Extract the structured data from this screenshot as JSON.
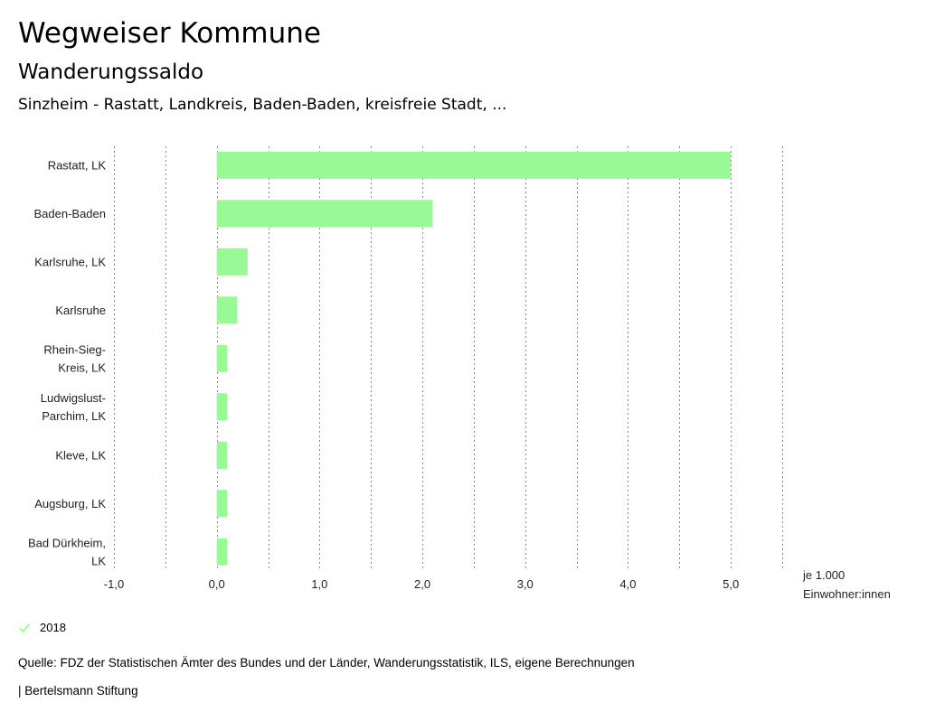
{
  "header": {
    "title": "Wegweiser Kommune",
    "subtitle": "Wanderungssaldo",
    "comparison": "Sinzheim - Rastatt, Landkreis, Baden-Baden, kreisfreie Stadt, ..."
  },
  "colors": {
    "bar": "#99f996",
    "grid": "#888888",
    "text": "#222222"
  },
  "chart_data": {
    "type": "bar",
    "orientation": "horizontal",
    "title": "Wanderungssaldo",
    "categories": [
      [
        "Rastatt, LK"
      ],
      [
        "Baden-Baden"
      ],
      [
        "Karlsruhe, LK"
      ],
      [
        "Karlsruhe"
      ],
      [
        "Rhein-Sieg-",
        "Kreis, LK"
      ],
      [
        "Ludwigslust-",
        "Parchim, LK"
      ],
      [
        "Kleve, LK"
      ],
      [
        "Augsburg, LK"
      ],
      [
        "Bad Dürkheim,",
        "LK"
      ]
    ],
    "series": [
      {
        "name": "2018",
        "values": [
          5.0,
          2.1,
          0.3,
          0.2,
          0.1,
          0.1,
          0.1,
          0.1,
          0.1
        ]
      }
    ],
    "xlim": [
      -1.0,
      5.5
    ],
    "xticks": [
      -1.0,
      0.0,
      1.0,
      2.0,
      3.0,
      4.0,
      5.0
    ],
    "xtick_labels": [
      "-1,0",
      "0,0",
      "1,0",
      "2,0",
      "3,0",
      "4,0",
      "5,0"
    ],
    "minor_gridlines": [
      -0.5,
      0.5,
      1.5,
      2.5,
      3.5,
      4.5,
      5.5
    ],
    "unit_label": [
      "je 1.000",
      "Einwohner:innen"
    ],
    "grid": true,
    "legend_position": "bottom-left"
  },
  "legend": {
    "label": "2018"
  },
  "footer": {
    "source": "Quelle: FDZ der Statistischen Ämter des Bundes und der Länder, Wanderungsstatistik, ILS, eigene Berechnungen",
    "publisher": "| Bertelsmann Stiftung"
  }
}
